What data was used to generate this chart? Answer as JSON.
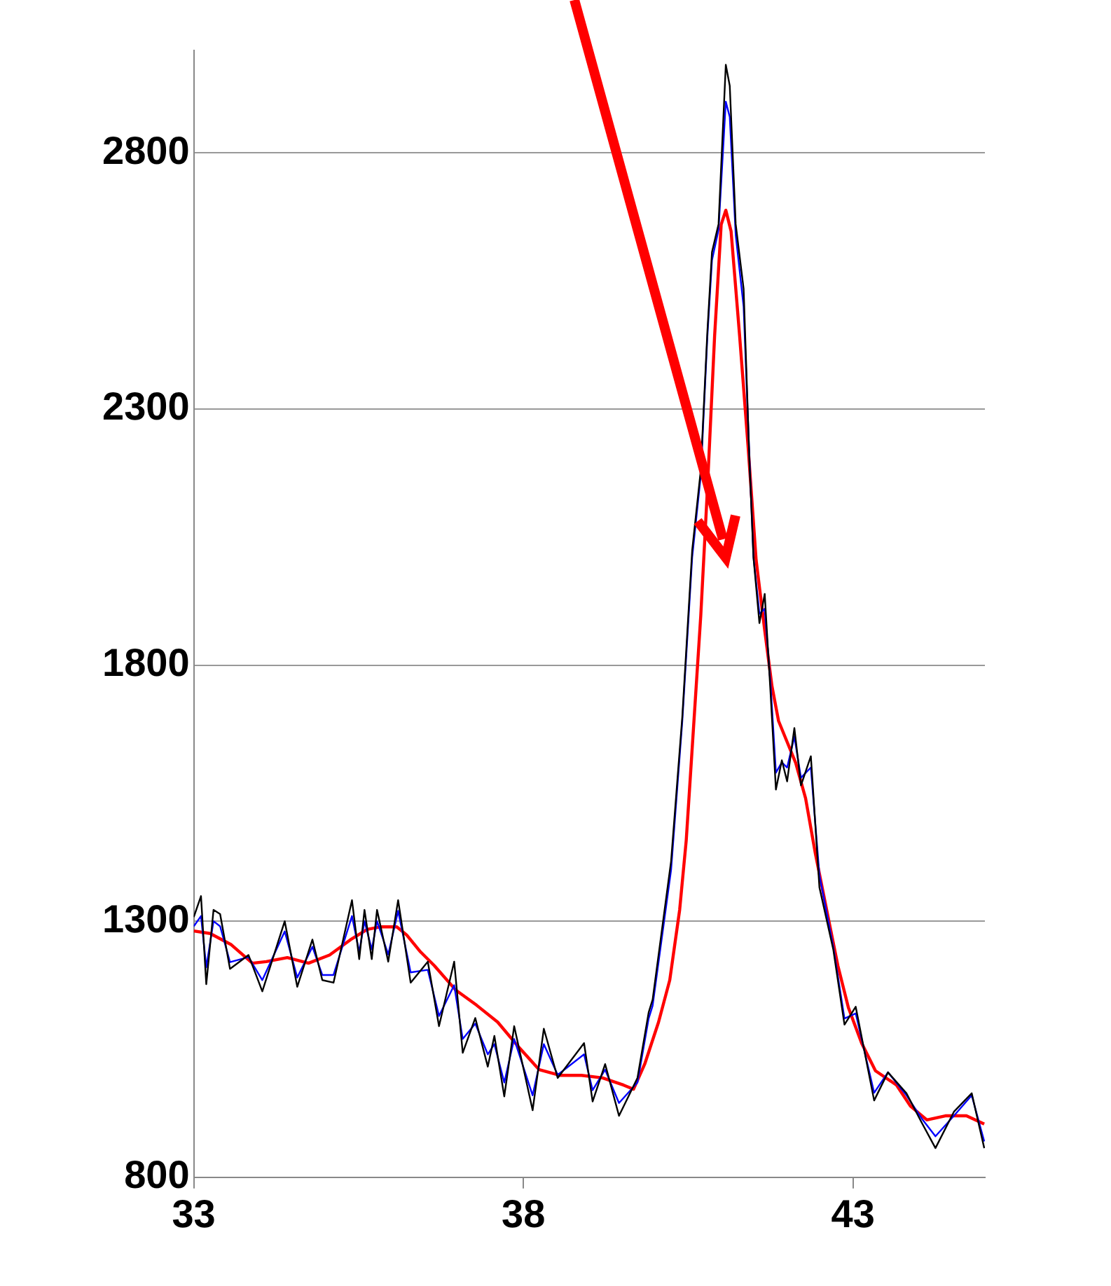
{
  "chart_data": {
    "type": "line",
    "xlim": [
      33,
      45
    ],
    "xticks": [
      33,
      38,
      43
    ],
    "ylim": [
      800,
      3000
    ],
    "yticks": [
      800,
      1300,
      1800,
      2300,
      2800
    ],
    "grid": "y",
    "legend": false,
    "marker": "none",
    "line_style": "solid",
    "series": [
      {
        "color": "#000000",
        "x": [
          33.0,
          33.11,
          33.19,
          33.3,
          33.4,
          33.55,
          33.83,
          34.04,
          34.38,
          34.57,
          34.8,
          34.95,
          35.12,
          35.4,
          35.51,
          35.59,
          35.7,
          35.78,
          35.95,
          36.1,
          36.29,
          36.55,
          36.72,
          36.95,
          37.08,
          37.27,
          37.46,
          37.56,
          37.71,
          37.86,
          38.14,
          38.31,
          38.52,
          38.92,
          39.05,
          39.24,
          39.45,
          39.73,
          39.9,
          39.96,
          40.24,
          40.41,
          40.56,
          40.69,
          40.79,
          40.86,
          40.96,
          41.07,
          41.13,
          41.22,
          41.34,
          41.43,
          41.49,
          41.58,
          41.66,
          41.75,
          41.83,
          41.92,
          42.0,
          42.11,
          42.21,
          42.36,
          42.49,
          42.7,
          42.87,
          43.04,
          43.32,
          43.53,
          43.81,
          44.04,
          44.25,
          44.53,
          44.8,
          44.99
        ],
        "values": [
          1308,
          1349,
          1177,
          1322,
          1314,
          1207,
          1234,
          1163,
          1300,
          1172,
          1264,
          1185,
          1180,
          1341,
          1226,
          1322,
          1226,
          1322,
          1221,
          1341,
          1180,
          1221,
          1095,
          1221,
          1043,
          1111,
          1016,
          1076,
          958,
          1095,
          931,
          1090,
          994,
          1062,
          948,
          1021,
          920,
          994,
          1122,
          1147,
          1417,
          1699,
          2024,
          2180,
          2450,
          2606,
          2661,
          2972,
          2931,
          2661,
          2535,
          2193,
          2010,
          1882,
          1939,
          1743,
          1557,
          1614,
          1573,
          1677,
          1565,
          1622,
          1366,
          1245,
          1098,
          1133,
          950,
          1005,
          964,
          907,
          857,
          928,
          964,
          857
        ]
      },
      {
        "color": "#0000ff",
        "x": [
          33.0,
          33.11,
          33.19,
          33.3,
          33.4,
          33.55,
          33.83,
          34.04,
          34.38,
          34.57,
          34.8,
          34.95,
          35.12,
          35.4,
          35.51,
          35.59,
          35.7,
          35.78,
          35.95,
          36.1,
          36.29,
          36.55,
          36.72,
          36.95,
          37.08,
          37.27,
          37.46,
          37.56,
          37.71,
          37.86,
          38.14,
          38.31,
          38.52,
          38.92,
          39.05,
          39.24,
          39.45,
          39.73,
          39.9,
          39.96,
          40.24,
          40.41,
          40.56,
          40.69,
          40.79,
          40.86,
          40.96,
          41.07,
          41.13,
          41.22,
          41.34,
          41.43,
          41.49,
          41.58,
          41.66,
          41.75,
          41.83,
          41.92,
          42.0,
          42.11,
          42.21,
          42.36,
          42.49,
          42.7,
          42.87,
          43.04,
          43.32,
          43.53,
          43.81,
          44.04,
          44.25,
          44.53,
          44.8,
          44.99
        ],
        "values": [
          1290,
          1310,
          1210,
          1300,
          1290,
          1220,
          1230,
          1185,
          1280,
          1190,
          1250,
          1195,
          1195,
          1310,
          1240,
          1300,
          1245,
          1300,
          1235,
          1320,
          1200,
          1205,
          1115,
          1175,
          1070,
          1100,
          1040,
          1060,
          985,
          1070,
          960,
          1060,
          1000,
          1040,
          970,
          1010,
          945,
          985,
          1110,
          1135,
          1400,
          1690,
          2010,
          2170,
          2440,
          2590,
          2650,
          2900,
          2870,
          2640,
          2500,
          2200,
          2010,
          1900,
          1910,
          1760,
          1590,
          1610,
          1600,
          1660,
          1580,
          1600,
          1390,
          1250,
          1110,
          1120,
          965,
          1005,
          960,
          915,
          880,
          920,
          960,
          870
        ]
      },
      {
        "color": "#ff0000",
        "x": [
          33.0,
          33.25,
          33.57,
          33.89,
          34.1,
          34.42,
          34.74,
          35.06,
          35.38,
          35.63,
          35.84,
          36.08,
          36.23,
          36.44,
          36.65,
          36.97,
          37.29,
          37.61,
          37.93,
          38.24,
          38.56,
          38.88,
          39.2,
          39.52,
          39.67,
          39.84,
          40.05,
          40.22,
          40.37,
          40.47,
          40.58,
          40.69,
          40.79,
          40.9,
          41.0,
          41.07,
          41.15,
          41.28,
          41.41,
          41.53,
          41.66,
          41.77,
          41.87,
          42.0,
          42.13,
          42.28,
          42.43,
          42.6,
          42.77,
          42.93,
          43.13,
          43.34,
          43.66,
          43.87,
          44.12,
          44.4,
          44.72,
          44.99
        ],
        "values": [
          1281,
          1276,
          1254,
          1218,
          1221,
          1229,
          1218,
          1234,
          1264,
          1284,
          1289,
          1289,
          1273,
          1240,
          1213,
          1166,
          1136,
          1103,
          1054,
          1010,
          999,
          999,
          994,
          980,
          972,
          1021,
          1103,
          1185,
          1322,
          1458,
          1677,
          1896,
          2141,
          2442,
          2660,
          2688,
          2647,
          2442,
          2223,
          2005,
          1868,
          1759,
          1691,
          1650,
          1609,
          1540,
          1431,
          1322,
          1213,
          1131,
          1062,
          1008,
          980,
          939,
          912,
          920,
          920,
          904
        ]
      }
    ]
  }
}
